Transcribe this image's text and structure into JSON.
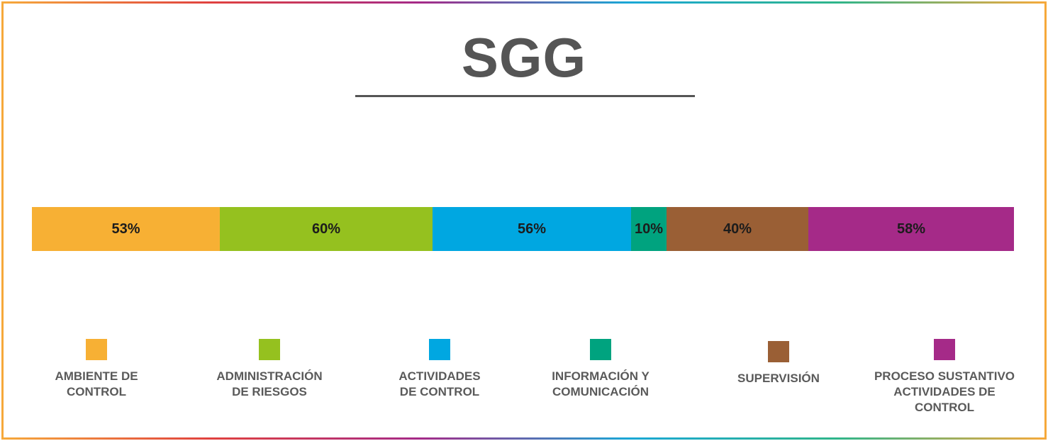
{
  "header": {
    "title": "SGG"
  },
  "chart_data": {
    "type": "bar",
    "orientation": "horizontal-stacked",
    "title": "SGG",
    "categories": [
      "AMBIENTE DE CONTROL",
      "ADMINISTRACIÓN DE RIESGOS",
      "ACTIVIDADES DE CONTROL",
      "INFORMACIÓN Y COMUNICACIÓN",
      "SUPERVISIÓN",
      "PROCESO SUSTANTIVO ACTIVIDADES DE CONTROL"
    ],
    "values": [
      53,
      60,
      56,
      10,
      40,
      58
    ],
    "value_labels": [
      "53%",
      "60%",
      "56%",
      "10%",
      "40%",
      "58%"
    ],
    "colors": [
      "#f7b034",
      "#95c11f",
      "#00a7e1",
      "#00a37f",
      "#9a5f35",
      "#a52a88"
    ],
    "legend": [
      {
        "label": "AMBIENTE DE\nCONTROL",
        "color": "#f7b034"
      },
      {
        "label": "ADMINISTRACIÓN\nDE RIESGOS",
        "color": "#95c11f"
      },
      {
        "label": "ACTIVIDADES\nDE CONTROL",
        "color": "#00a7e1"
      },
      {
        "label": "INFORMACIÓN Y\nCOMUNICACIÓN",
        "color": "#00a37f"
      },
      {
        "label": "SUPERVISIÓN",
        "color": "#9a5f35"
      },
      {
        "label": "PROCESO SUSTANTIVO\nACTIVIDADES DE\nCONTROL",
        "color": "#a52a88"
      }
    ],
    "legend_position": "bottom",
    "grid": false
  }
}
